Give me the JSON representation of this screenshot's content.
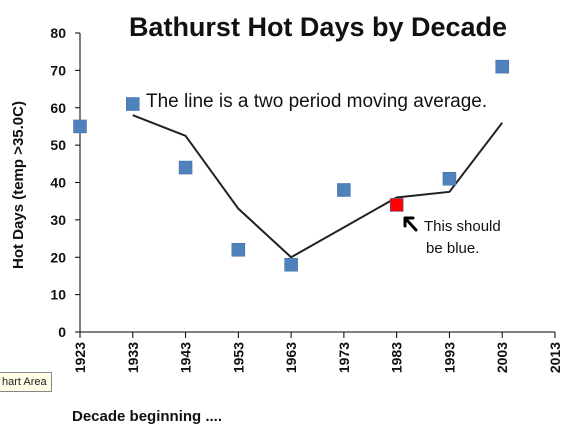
{
  "chart_data": {
    "type": "scatter",
    "title": "Bathurst Hot Days by Decade",
    "xlabel": "Decade beginning ....",
    "ylabel": "Hot Days (temp >35.0C)",
    "ylim": [
      0,
      80
    ],
    "y_ticks": [
      "0",
      "10",
      "20",
      "30",
      "40",
      "50",
      "60",
      "70",
      "80"
    ],
    "x_ticks": [
      "1923",
      "1933",
      "1943",
      "1953",
      "1963",
      "1973",
      "1983",
      "1993",
      "2003",
      "2013"
    ],
    "grid": false,
    "legend": "none",
    "series": [
      {
        "type": "scatter",
        "x": [
          "1923",
          "1933",
          "1943",
          "1953",
          "1963",
          "1973",
          "1983",
          "1993",
          "2003"
        ],
        "values": [
          55,
          61,
          44,
          22,
          18,
          38,
          34,
          41,
          71
        ],
        "point_colors": [
          "#4f81bd",
          "#4f81bd",
          "#4f81bd",
          "#4f81bd",
          "#4f81bd",
          "#4f81bd",
          "#ff0000",
          "#4f81bd",
          "#4f81bd"
        ]
      },
      {
        "type": "line",
        "x": [
          "1933",
          "1943",
          "1953",
          "1963",
          "1973",
          "1983",
          "1993",
          "2003"
        ],
        "values": [
          58,
          52.5,
          33,
          20,
          28,
          36,
          37.5,
          56
        ],
        "color": "#222222"
      }
    ],
    "annotations": [
      {
        "text": "The line is a two period moving average."
      },
      {
        "text_lines": [
          "This should",
          "be blue."
        ]
      }
    ]
  },
  "tooltip": {
    "text": "hart Area"
  },
  "colors": {
    "marker_default": "#4f81bd",
    "marker_highlight": "#ff0000",
    "line": "#222222"
  }
}
